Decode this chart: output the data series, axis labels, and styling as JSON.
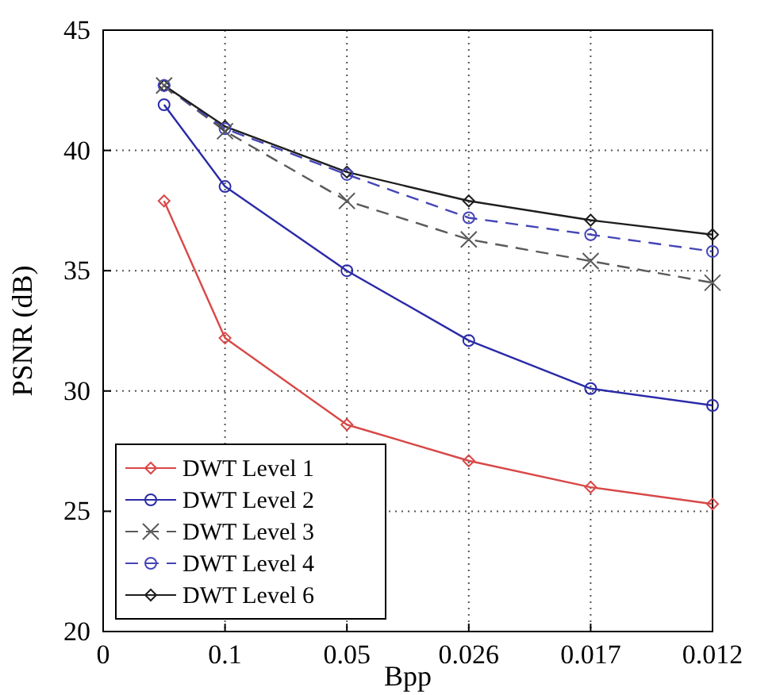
{
  "chart_data": {
    "type": "line",
    "xlabel": "Bpp",
    "ylabel": "PSNR (dB)",
    "categories": [
      "0",
      null,
      "0.1",
      null,
      "0.05",
      null,
      "0.026",
      null,
      "0.017",
      null,
      "0.012"
    ],
    "ylim": [
      20,
      45
    ],
    "yticks": [
      20,
      25,
      30,
      35,
      40,
      45
    ],
    "grid": true,
    "legend": "bottom left",
    "series": [
      {
        "name": "DWT Level 1",
        "color": "#d84848",
        "marker": "diamond",
        "line_style": "solid",
        "values": [
          null,
          37.9,
          32.2,
          null,
          28.6,
          null,
          27.1,
          null,
          26.0,
          null,
          25.3
        ]
      },
      {
        "name": "DWT Level 2",
        "color": "#2a2aa8",
        "marker": "circle",
        "line_style": "solid",
        "values": [
          null,
          41.9,
          38.5,
          null,
          35.0,
          null,
          32.1,
          null,
          30.1,
          null,
          29.4
        ]
      },
      {
        "name": "DWT Level 3",
        "color": "#5a5a5a",
        "marker": "cross",
        "line_style": "dashed",
        "values": [
          null,
          42.7,
          40.8,
          null,
          37.9,
          null,
          36.3,
          null,
          35.4,
          null,
          34.5
        ]
      },
      {
        "name": "DWT Level 4",
        "color": "#4545b8",
        "marker": "circle",
        "line_style": "dashed",
        "values": [
          null,
          42.7,
          40.9,
          null,
          39.0,
          null,
          37.2,
          null,
          36.5,
          null,
          35.8
        ]
      },
      {
        "name": "DWT Level 6",
        "color": "#1e1e1e",
        "marker": "diamond",
        "line_style": "solid",
        "values": [
          null,
          42.7,
          41.0,
          null,
          39.1,
          null,
          37.9,
          null,
          37.1,
          null,
          36.5
        ]
      }
    ]
  }
}
